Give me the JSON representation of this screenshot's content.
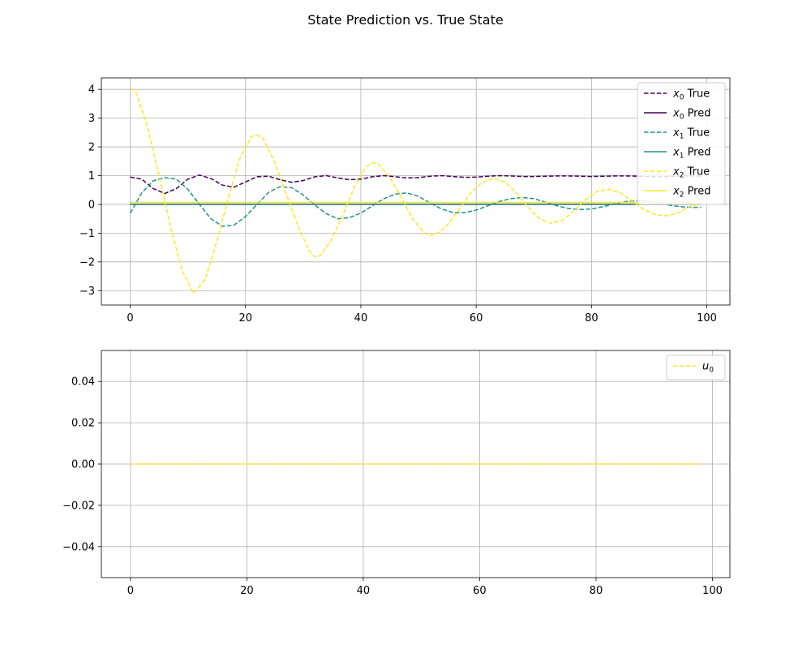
{
  "figure": {
    "title": "State Prediction vs. True State"
  },
  "chart_data": [
    {
      "type": "line",
      "xlim": [
        -5,
        104
      ],
      "ylim": [
        -3.5,
        4.4
      ],
      "xticks": [
        0,
        20,
        40,
        60,
        80,
        100
      ],
      "yticks": [
        -3,
        -2,
        -1,
        0,
        1,
        2,
        3,
        4
      ],
      "grid": true,
      "legend_position": "top-right",
      "series": [
        {
          "name": "x0 True",
          "label_base": "x",
          "label_sub": "0",
          "label_suffix": " True",
          "color": "#440154",
          "style": "dashed",
          "x": [
            0,
            2,
            4,
            6,
            8,
            10,
            12,
            14,
            16,
            18,
            20,
            22,
            24,
            26,
            28,
            30,
            32,
            34,
            36,
            38,
            40,
            42,
            44,
            46,
            48,
            50,
            52,
            54,
            56,
            58,
            60,
            62,
            64,
            66,
            68,
            70,
            72,
            74,
            76,
            78,
            80,
            82,
            84,
            86,
            88,
            90,
            92,
            94,
            96,
            98,
            99
          ],
          "y": [
            0.95,
            0.88,
            0.55,
            0.38,
            0.55,
            0.88,
            1.02,
            0.9,
            0.67,
            0.6,
            0.78,
            0.96,
            0.98,
            0.86,
            0.77,
            0.83,
            0.96,
            1.0,
            0.92,
            0.86,
            0.88,
            0.96,
            1.0,
            0.96,
            0.92,
            0.93,
            0.98,
            1.0,
            0.97,
            0.94,
            0.95,
            0.98,
            1.0,
            0.99,
            0.97,
            0.97,
            0.98,
            0.99,
            0.99,
            0.98,
            0.97,
            0.98,
            0.99,
            0.99,
            0.98,
            0.97,
            0.97,
            0.98,
            0.99,
            0.99,
            0.98
          ]
        },
        {
          "name": "x0 Pred",
          "label_base": "x",
          "label_sub": "0",
          "label_suffix": " Pred",
          "color": "#440154",
          "style": "solid",
          "x": [
            0,
            99
          ],
          "y": [
            0.0,
            0.0
          ]
        },
        {
          "name": "x1 True",
          "label_base": "x",
          "label_sub": "1",
          "label_suffix": " True",
          "color": "#21918c",
          "style": "dashed",
          "x": [
            0,
            2,
            4,
            6,
            8,
            10,
            12,
            14,
            16,
            18,
            20,
            22,
            24,
            26,
            28,
            30,
            32,
            34,
            36,
            38,
            40,
            42,
            44,
            46,
            48,
            50,
            52,
            54,
            56,
            58,
            60,
            62,
            64,
            66,
            68,
            70,
            72,
            74,
            76,
            78,
            80,
            82,
            84,
            86,
            88,
            90,
            92,
            94,
            96,
            98,
            99
          ],
          "y": [
            -0.3,
            0.4,
            0.82,
            0.93,
            0.88,
            0.52,
            0.0,
            -0.5,
            -0.76,
            -0.72,
            -0.42,
            0.0,
            0.42,
            0.62,
            0.58,
            0.33,
            -0.02,
            -0.32,
            -0.5,
            -0.46,
            -0.3,
            -0.05,
            0.2,
            0.36,
            0.4,
            0.28,
            0.05,
            -0.16,
            -0.28,
            -0.29,
            -0.2,
            -0.05,
            0.1,
            0.2,
            0.24,
            0.2,
            0.08,
            -0.05,
            -0.14,
            -0.18,
            -0.16,
            -0.08,
            0.02,
            0.1,
            0.13,
            0.1,
            0.03,
            -0.04,
            -0.09,
            -0.11,
            -0.1
          ]
        },
        {
          "name": "x1 Pred",
          "label_base": "x",
          "label_sub": "1",
          "label_suffix": " Pred",
          "color": "#21918c",
          "style": "solid",
          "x": [
            0,
            99
          ],
          "y": [
            0.01,
            0.01
          ]
        },
        {
          "name": "x2 True",
          "label_base": "x",
          "label_sub": "2",
          "label_suffix": " True",
          "color": "#fde725",
          "style": "dashed",
          "x": [
            0,
            1,
            3,
            5,
            7,
            9,
            11,
            13,
            15,
            17,
            19,
            21,
            22,
            23,
            25,
            27,
            29,
            31,
            32,
            33,
            35,
            37,
            39,
            41,
            42,
            43,
            45,
            47,
            49,
            51,
            52,
            53,
            55,
            57,
            59,
            61,
            63,
            65,
            67,
            69,
            71,
            73,
            75,
            77,
            79,
            81,
            83,
            85,
            87,
            89,
            91,
            93,
            95,
            97,
            99
          ],
          "y": [
            4.05,
            3.9,
            2.7,
            1.0,
            -0.8,
            -2.3,
            -3.1,
            -2.6,
            -1.3,
            0.2,
            1.6,
            2.35,
            2.42,
            2.3,
            1.5,
            0.4,
            -0.7,
            -1.6,
            -1.82,
            -1.78,
            -1.2,
            -0.3,
            0.65,
            1.32,
            1.45,
            1.4,
            0.95,
            0.25,
            -0.5,
            -1.0,
            -1.08,
            -1.05,
            -0.72,
            -0.18,
            0.38,
            0.76,
            0.9,
            0.78,
            0.4,
            -0.1,
            -0.5,
            -0.66,
            -0.55,
            -0.22,
            0.17,
            0.45,
            0.53,
            0.4,
            0.12,
            -0.17,
            -0.35,
            -0.4,
            -0.3,
            -0.08,
            0.0
          ]
        },
        {
          "name": "x2 Pred",
          "label_base": "x",
          "label_sub": "2",
          "label_suffix": " Pred",
          "color": "#fde725",
          "style": "solid",
          "x": [
            0,
            99
          ],
          "y": [
            0.07,
            0.07
          ]
        }
      ]
    },
    {
      "type": "line",
      "xlim": [
        -5,
        103
      ],
      "ylim": [
        -0.055,
        0.055
      ],
      "xticks": [
        0,
        20,
        40,
        60,
        80,
        100
      ],
      "yticks": [
        -0.04,
        -0.02,
        0.0,
        0.02,
        0.04
      ],
      "ytick_labels": [
        "−0.04",
        "−0.02",
        "0.00",
        "0.02",
        "0.04"
      ],
      "grid": true,
      "legend_position": "top-right",
      "series": [
        {
          "name": "u0",
          "label_base": "u",
          "label_sub": "0",
          "label_suffix": "",
          "color": "#fde725",
          "style": "dashed",
          "x": [
            0,
            98
          ],
          "y": [
            0.0,
            0.0
          ]
        }
      ]
    }
  ]
}
